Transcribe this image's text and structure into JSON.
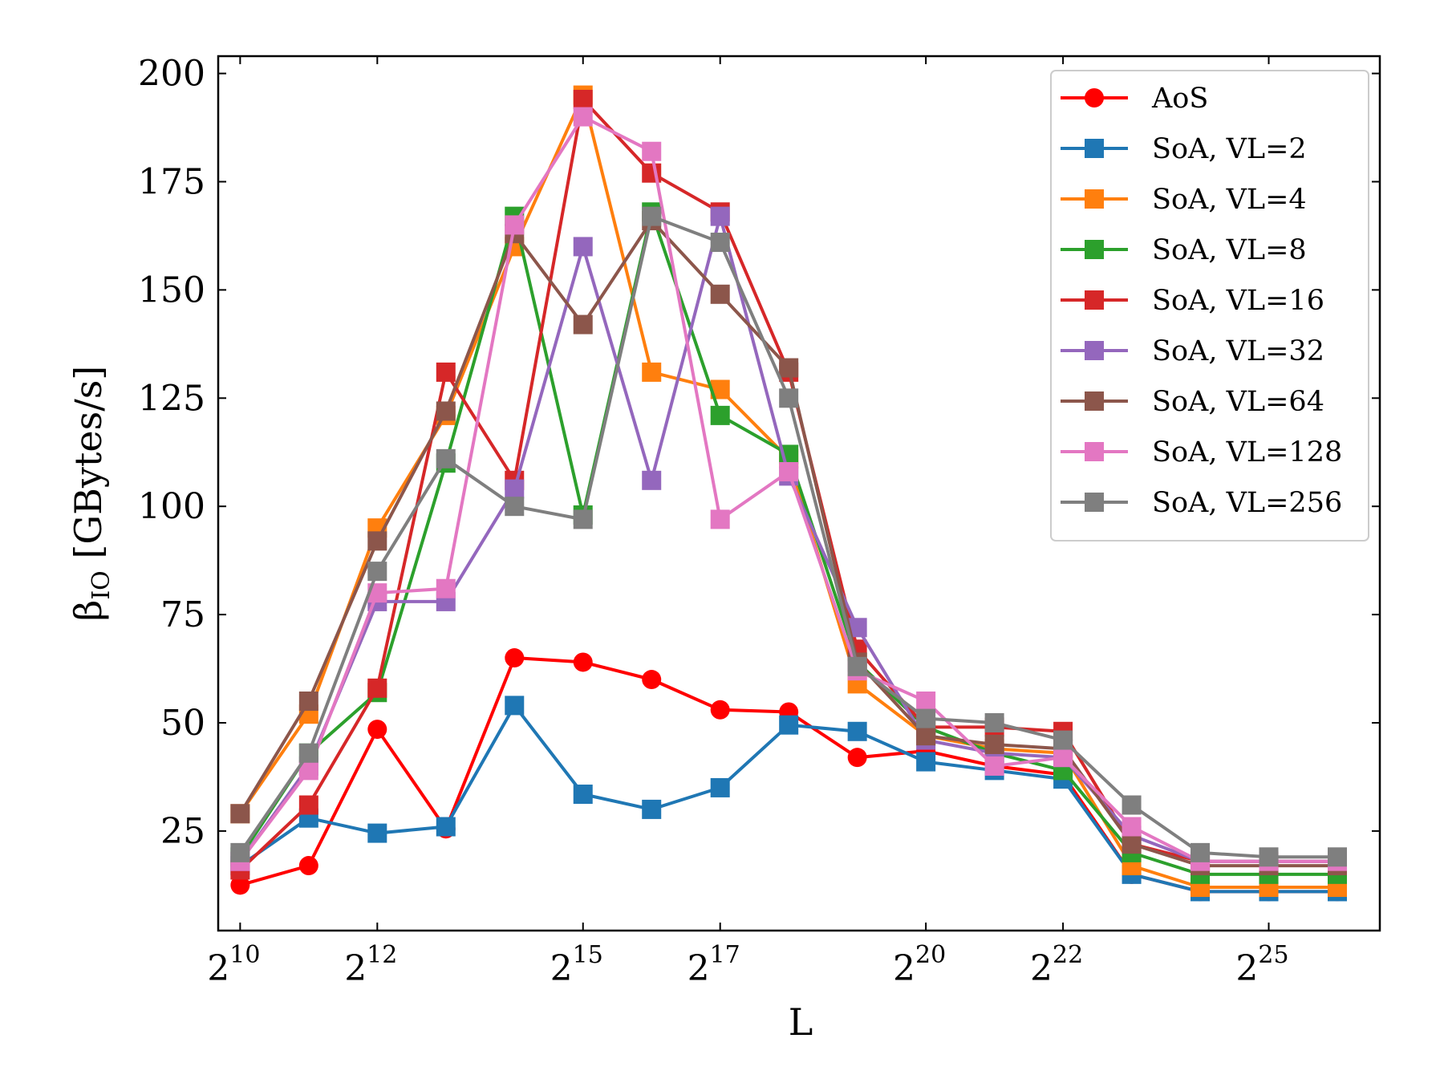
{
  "chart_data": {
    "type": "line",
    "xlabel": "L",
    "ylabel": "β_IO [GBytes/s]",
    "ylabel_main": "β",
    "ylabel_sub": "IO",
    "ylabel_rest": " [GBytes/s]",
    "x_scale": "log2",
    "x": [
      1024,
      2048,
      4096,
      8192,
      16384,
      32768,
      65536,
      131072,
      262144,
      524288,
      1048576,
      2097152,
      4194304,
      8388608,
      16777216,
      33554432,
      67108864
    ],
    "xticks": [
      {
        "exp": 10,
        "base": "2",
        "sup": "10"
      },
      {
        "exp": 12,
        "base": "2",
        "sup": "12"
      },
      {
        "exp": 15,
        "base": "2",
        "sup": "15"
      },
      {
        "exp": 17,
        "base": "2",
        "sup": "17"
      },
      {
        "exp": 20,
        "base": "2",
        "sup": "20"
      },
      {
        "exp": 22,
        "base": "2",
        "sup": "22"
      },
      {
        "exp": 25,
        "base": "2",
        "sup": "25"
      }
    ],
    "ylim": [
      2,
      204
    ],
    "yticks": [
      25,
      50,
      75,
      100,
      125,
      150,
      175,
      200
    ],
    "grid": false,
    "legend_position": "top-right",
    "series": [
      {
        "name": "AoS",
        "color": "#ff0000",
        "marker": "circle",
        "values": [
          12.5,
          17,
          48.5,
          25.5,
          65,
          64,
          60,
          53,
          52.5,
          42,
          43.5,
          40,
          38,
          15,
          11,
          11,
          11
        ]
      },
      {
        "name": "SoA, VL=2",
        "color": "#1f77b4",
        "marker": "square",
        "values": [
          17,
          28,
          24.5,
          26,
          54,
          33.5,
          30,
          35,
          49.5,
          48,
          41,
          39,
          37,
          15,
          11,
          11,
          11
        ]
      },
      {
        "name": "SoA, VL=4",
        "color": "#ff7f0e",
        "marker": "square",
        "values": [
          29,
          52,
          95,
          121,
          160,
          195,
          131,
          127,
          111,
          59,
          47,
          44,
          43,
          17,
          12,
          12,
          12
        ]
      },
      {
        "name": "SoA, VL=8",
        "color": "#2ca02c",
        "marker": "square",
        "values": [
          19,
          43,
          57,
          110,
          167,
          98,
          168,
          121,
          112,
          64,
          49,
          43,
          39,
          20,
          15,
          15,
          15
        ]
      },
      {
        "name": "SoA, VL=16",
        "color": "#d62728",
        "marker": "square",
        "values": [
          16,
          31,
          58,
          131,
          106,
          194,
          177,
          168,
          131,
          67,
          49,
          49,
          48,
          22,
          18,
          18,
          18
        ]
      },
      {
        "name": "SoA, VL=32",
        "color": "#9467bd",
        "marker": "square",
        "values": [
          18,
          40,
          78,
          78,
          104,
          160,
          106,
          167,
          107,
          72,
          46,
          43,
          42,
          24,
          18,
          18,
          18
        ]
      },
      {
        "name": "SoA, VL=64",
        "color": "#8c564b",
        "marker": "square",
        "values": [
          29,
          55,
          92,
          122,
          163,
          142,
          166,
          149,
          132,
          64,
          47,
          45,
          44,
          22,
          17,
          17,
          17
        ]
      },
      {
        "name": "SoA, VL=128",
        "color": "#e377c2",
        "marker": "square",
        "values": [
          18,
          39,
          80,
          81,
          165,
          190,
          182,
          97,
          108,
          62,
          55,
          40,
          42,
          26,
          18,
          18,
          18
        ]
      },
      {
        "name": "SoA, VL=256",
        "color": "#7f7f7f",
        "marker": "square",
        "values": [
          20,
          43,
          85,
          111,
          100,
          97,
          167,
          161,
          125,
          63,
          51,
          50,
          46,
          31,
          20,
          19,
          19
        ]
      }
    ]
  }
}
